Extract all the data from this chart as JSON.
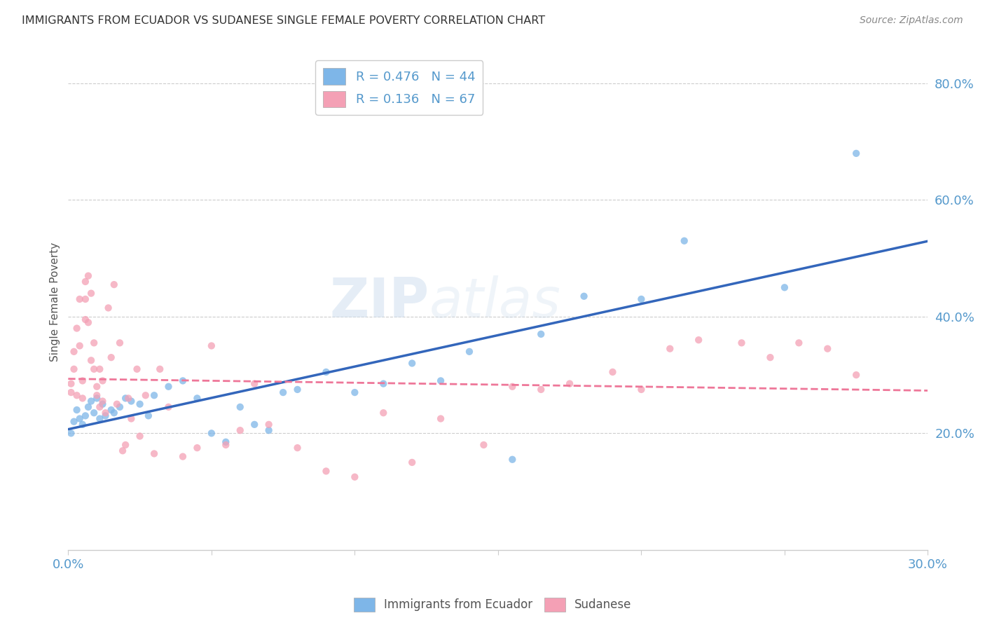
{
  "title": "IMMIGRANTS FROM ECUADOR VS SUDANESE SINGLE FEMALE POVERTY CORRELATION CHART",
  "source": "Source: ZipAtlas.com",
  "ylabel": "Single Female Poverty",
  "xlim": [
    0.0,
    0.3
  ],
  "ylim": [
    0.0,
    0.85
  ],
  "ytick_labels": [
    "20.0%",
    "40.0%",
    "60.0%",
    "80.0%"
  ],
  "ytick_values": [
    0.2,
    0.4,
    0.6,
    0.8
  ],
  "legend_r1": "R = 0.476",
  "legend_n1": "N = 44",
  "legend_r2": "R = 0.136",
  "legend_n2": "N = 67",
  "color_blue": "#7EB6E8",
  "color_pink": "#F4A0B5",
  "color_line_blue": "#3366BB",
  "color_line_pink": "#EE7799",
  "color_axis_text": "#5599CC",
  "watermark_part1": "ZIP",
  "watermark_part2": "atlas",
  "ecuador_x": [
    0.001,
    0.002,
    0.003,
    0.004,
    0.005,
    0.006,
    0.007,
    0.008,
    0.009,
    0.01,
    0.011,
    0.012,
    0.013,
    0.015,
    0.016,
    0.018,
    0.02,
    0.022,
    0.025,
    0.028,
    0.03,
    0.035,
    0.04,
    0.045,
    0.05,
    0.055,
    0.06,
    0.065,
    0.07,
    0.075,
    0.08,
    0.09,
    0.1,
    0.11,
    0.12,
    0.13,
    0.14,
    0.155,
    0.165,
    0.18,
    0.2,
    0.215,
    0.25,
    0.275
  ],
  "ecuador_y": [
    0.2,
    0.22,
    0.24,
    0.225,
    0.215,
    0.23,
    0.245,
    0.255,
    0.235,
    0.26,
    0.225,
    0.25,
    0.23,
    0.24,
    0.235,
    0.245,
    0.26,
    0.255,
    0.25,
    0.23,
    0.265,
    0.28,
    0.29,
    0.26,
    0.2,
    0.185,
    0.245,
    0.215,
    0.205,
    0.27,
    0.275,
    0.305,
    0.27,
    0.285,
    0.32,
    0.29,
    0.34,
    0.155,
    0.37,
    0.435,
    0.43,
    0.53,
    0.45,
    0.68
  ],
  "sudanese_x": [
    0.001,
    0.001,
    0.002,
    0.002,
    0.003,
    0.003,
    0.004,
    0.004,
    0.005,
    0.005,
    0.006,
    0.006,
    0.006,
    0.007,
    0.007,
    0.008,
    0.008,
    0.009,
    0.009,
    0.01,
    0.01,
    0.011,
    0.011,
    0.012,
    0.012,
    0.013,
    0.014,
    0.015,
    0.016,
    0.017,
    0.018,
    0.019,
    0.02,
    0.021,
    0.022,
    0.024,
    0.025,
    0.027,
    0.03,
    0.032,
    0.035,
    0.04,
    0.045,
    0.05,
    0.055,
    0.06,
    0.065,
    0.07,
    0.08,
    0.09,
    0.1,
    0.11,
    0.12,
    0.13,
    0.145,
    0.155,
    0.165,
    0.175,
    0.19,
    0.2,
    0.21,
    0.22,
    0.235,
    0.245,
    0.255,
    0.265,
    0.275
  ],
  "sudanese_y": [
    0.27,
    0.285,
    0.31,
    0.34,
    0.265,
    0.38,
    0.35,
    0.43,
    0.29,
    0.26,
    0.395,
    0.43,
    0.46,
    0.39,
    0.47,
    0.325,
    0.44,
    0.31,
    0.355,
    0.265,
    0.28,
    0.245,
    0.31,
    0.255,
    0.29,
    0.235,
    0.415,
    0.33,
    0.455,
    0.25,
    0.355,
    0.17,
    0.18,
    0.26,
    0.225,
    0.31,
    0.195,
    0.265,
    0.165,
    0.31,
    0.245,
    0.16,
    0.175,
    0.35,
    0.18,
    0.205,
    0.285,
    0.215,
    0.175,
    0.135,
    0.125,
    0.235,
    0.15,
    0.225,
    0.18,
    0.28,
    0.275,
    0.285,
    0.305,
    0.275,
    0.345,
    0.36,
    0.355,
    0.33,
    0.355,
    0.345,
    0.3
  ]
}
